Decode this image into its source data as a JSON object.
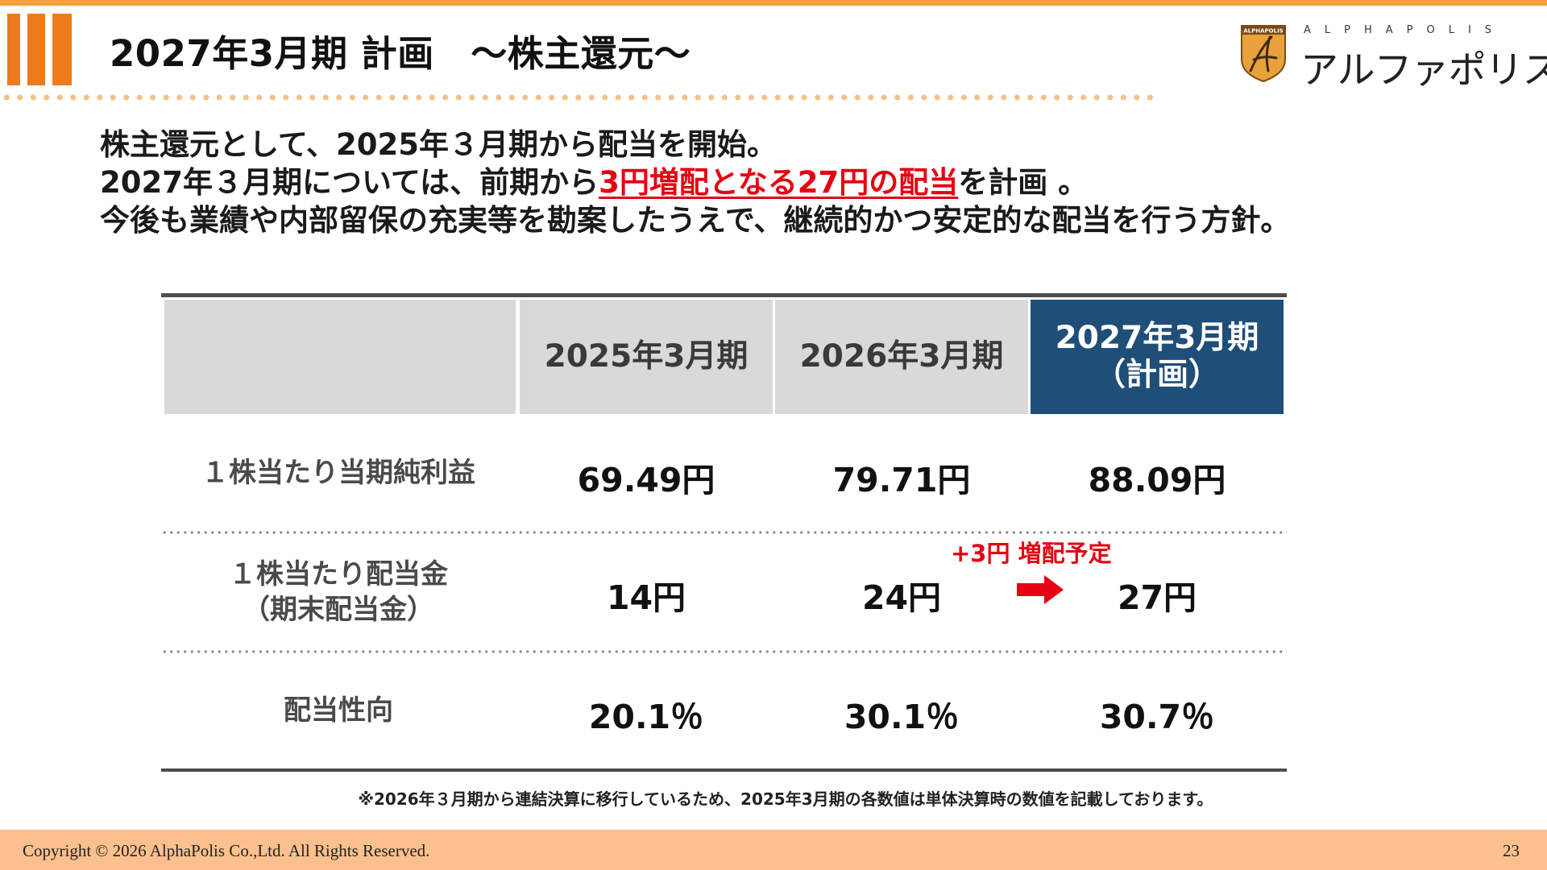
{
  "header": {
    "title": "2027年3月期 計画　～株主還元～",
    "accent_color": "#ee7b1e",
    "dots_color": "#f7bf86"
  },
  "logo": {
    "badge_text_top": "ALPHAPOLIS",
    "latin": "ALPHAPOLIS",
    "japanese": "アルファポリス"
  },
  "intro": {
    "line1": "株主還元として、2025年３月期から配当を開始。",
    "line2_pre": "2027年３月期については、前期から",
    "line2_highlight": "3円増配となる27円の配当",
    "line2_post": "を計画 。",
    "line3": "今後も業績や内部留保の充実等を勘案したうえで、継続的かつ安定的な配当を行う方針。"
  },
  "table": {
    "columns": [
      "2025年3月期",
      "2026年3月期",
      "2027年3月期",
      "（計画）"
    ],
    "rows": [
      {
        "label": "１株当たり当期純利益",
        "values": [
          "69.49円",
          "79.71円",
          "88.09円"
        ]
      },
      {
        "label_line1": "１株当たり配当金",
        "label_line2": "（期末配当金）",
        "values": [
          "14円",
          "24円",
          "27円"
        ]
      },
      {
        "label": "配当性向",
        "values": [
          "20.1％",
          "30.1％",
          "30.7％"
        ]
      }
    ],
    "increase_note": "+3円 増配予定",
    "plan_color": "#1f4e79",
    "highlight_color": "#e60012"
  },
  "footnote": "※2026年３月期から連結決算に移行しているため、2025年3月期の各数値は単体決算時の数値を記載しております。",
  "footer": {
    "copyright": "Copyright © 2026 AlphaPolis Co.,Ltd.  All Rights Reserved.",
    "page": "23"
  }
}
